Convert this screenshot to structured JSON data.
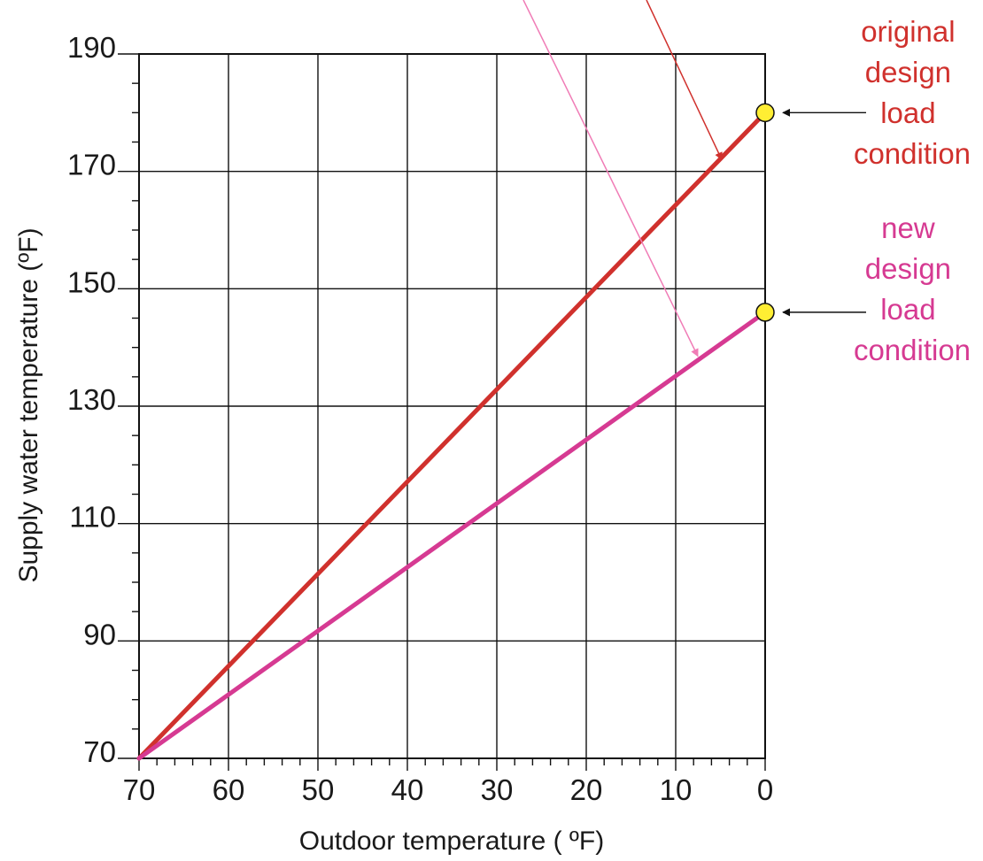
{
  "chart_data": {
    "type": "line",
    "xlabel": "Outdoor temperature ( ºF)",
    "ylabel": "Supply water temperature (ºF)",
    "xlim": [
      70,
      0
    ],
    "ylim": [
      70,
      190
    ],
    "x_reversed": true,
    "x_ticks": [
      70,
      60,
      50,
      40,
      30,
      20,
      10,
      0
    ],
    "x_tick_labels": [
      "70",
      "60",
      "50",
      "40",
      "30",
      "20",
      "10",
      "0"
    ],
    "y_ticks": [
      70,
      90,
      110,
      130,
      150,
      170,
      190
    ],
    "y_tick_labels": [
      "70",
      "90",
      "110",
      "130",
      "150",
      "170",
      "190"
    ],
    "grid": true,
    "series": [
      {
        "color": "#d0312d",
        "x": [
          70,
          0
        ],
        "y": [
          70,
          180
        ]
      },
      {
        "color": "#d63a92",
        "x": [
          70,
          0
        ],
        "y": [
          70,
          146
        ]
      }
    ],
    "annotations": [
      {
        "lines": [
          "original",
          "design",
          "load",
          "condition"
        ],
        "color": "#d0312d",
        "point": {
          "x": 0,
          "y": 180
        },
        "marker_color": "#ffee33"
      },
      {
        "lines": [
          "new",
          "design",
          "load",
          "condition"
        ],
        "color": "#d63a92",
        "point": {
          "x": 0,
          "y": 146
        },
        "marker_color": "#ffee33"
      }
    ]
  }
}
